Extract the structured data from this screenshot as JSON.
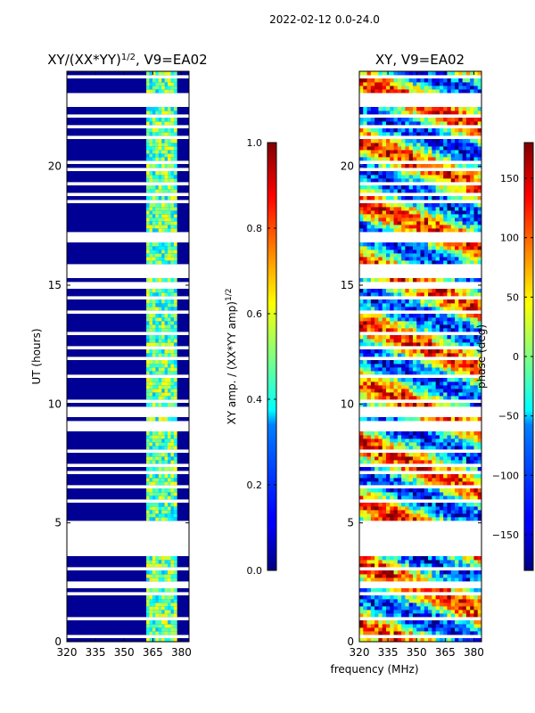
{
  "chart_data": {
    "type": "heatmap",
    "suptitle": "2022-02-12 0.0-24.0",
    "xlabel": "frequency (MHz)",
    "panels": [
      {
        "id": "amp",
        "title_main": "XY/(XX*YY)",
        "title_exp": "1/2",
        "title_suffix": ", V9=EA02",
        "ylabel": "UT (hours)",
        "xlim": [
          320,
          384
        ],
        "ylim": [
          0,
          24
        ],
        "xticks": [
          "320",
          "335",
          "350",
          "365",
          "380"
        ],
        "xtick_values": [
          320,
          335,
          350,
          365,
          380
        ],
        "yticks": [
          "0",
          "5",
          "10",
          "15",
          "20"
        ],
        "ytick_values": [
          0,
          5,
          10,
          15,
          20
        ],
        "colorbar": {
          "label_main": "XY amp. / (XX*YY amp)",
          "label_exp": "1/2",
          "range": [
            0.0,
            1.0
          ],
          "ticks": [
            "0.0",
            "0.2",
            "0.4",
            "0.6",
            "0.8",
            "1.0"
          ],
          "tick_values": [
            0.0,
            0.2,
            0.4,
            0.6,
            0.8,
            1.0
          ],
          "colormap": "jet"
        },
        "pattern": "Mostly 0 (dark blue) below ~362 MHz; 0.3-0.6 (cyan/green/yellow) in 362-378 MHz; many flagged (blank) time rows"
      },
      {
        "id": "phase",
        "title_main": "XY, V9=EA02",
        "ylabel": "phase (deg)",
        "xlim": [
          320,
          384
        ],
        "ylim": [
          0,
          24
        ],
        "xticks": [
          "320",
          "335",
          "350",
          "365",
          "380"
        ],
        "xtick_values": [
          320,
          335,
          350,
          365,
          380
        ],
        "yticks": [
          "0",
          "5",
          "10",
          "15",
          "20"
        ],
        "ytick_values": [
          0,
          5,
          10,
          15,
          20
        ],
        "colorbar": {
          "range": [
            -180,
            180
          ],
          "ticks": [
            "−150",
            "−100",
            "−50",
            "0",
            "50",
            "100",
            "150"
          ],
          "tick_values": [
            -150,
            -100,
            -50,
            0,
            50,
            100,
            150
          ],
          "colormap": "jet"
        },
        "pattern": "Noisy phase across full band, mostly -180..180 mixed; many flagged (blank) time rows"
      }
    ]
  }
}
